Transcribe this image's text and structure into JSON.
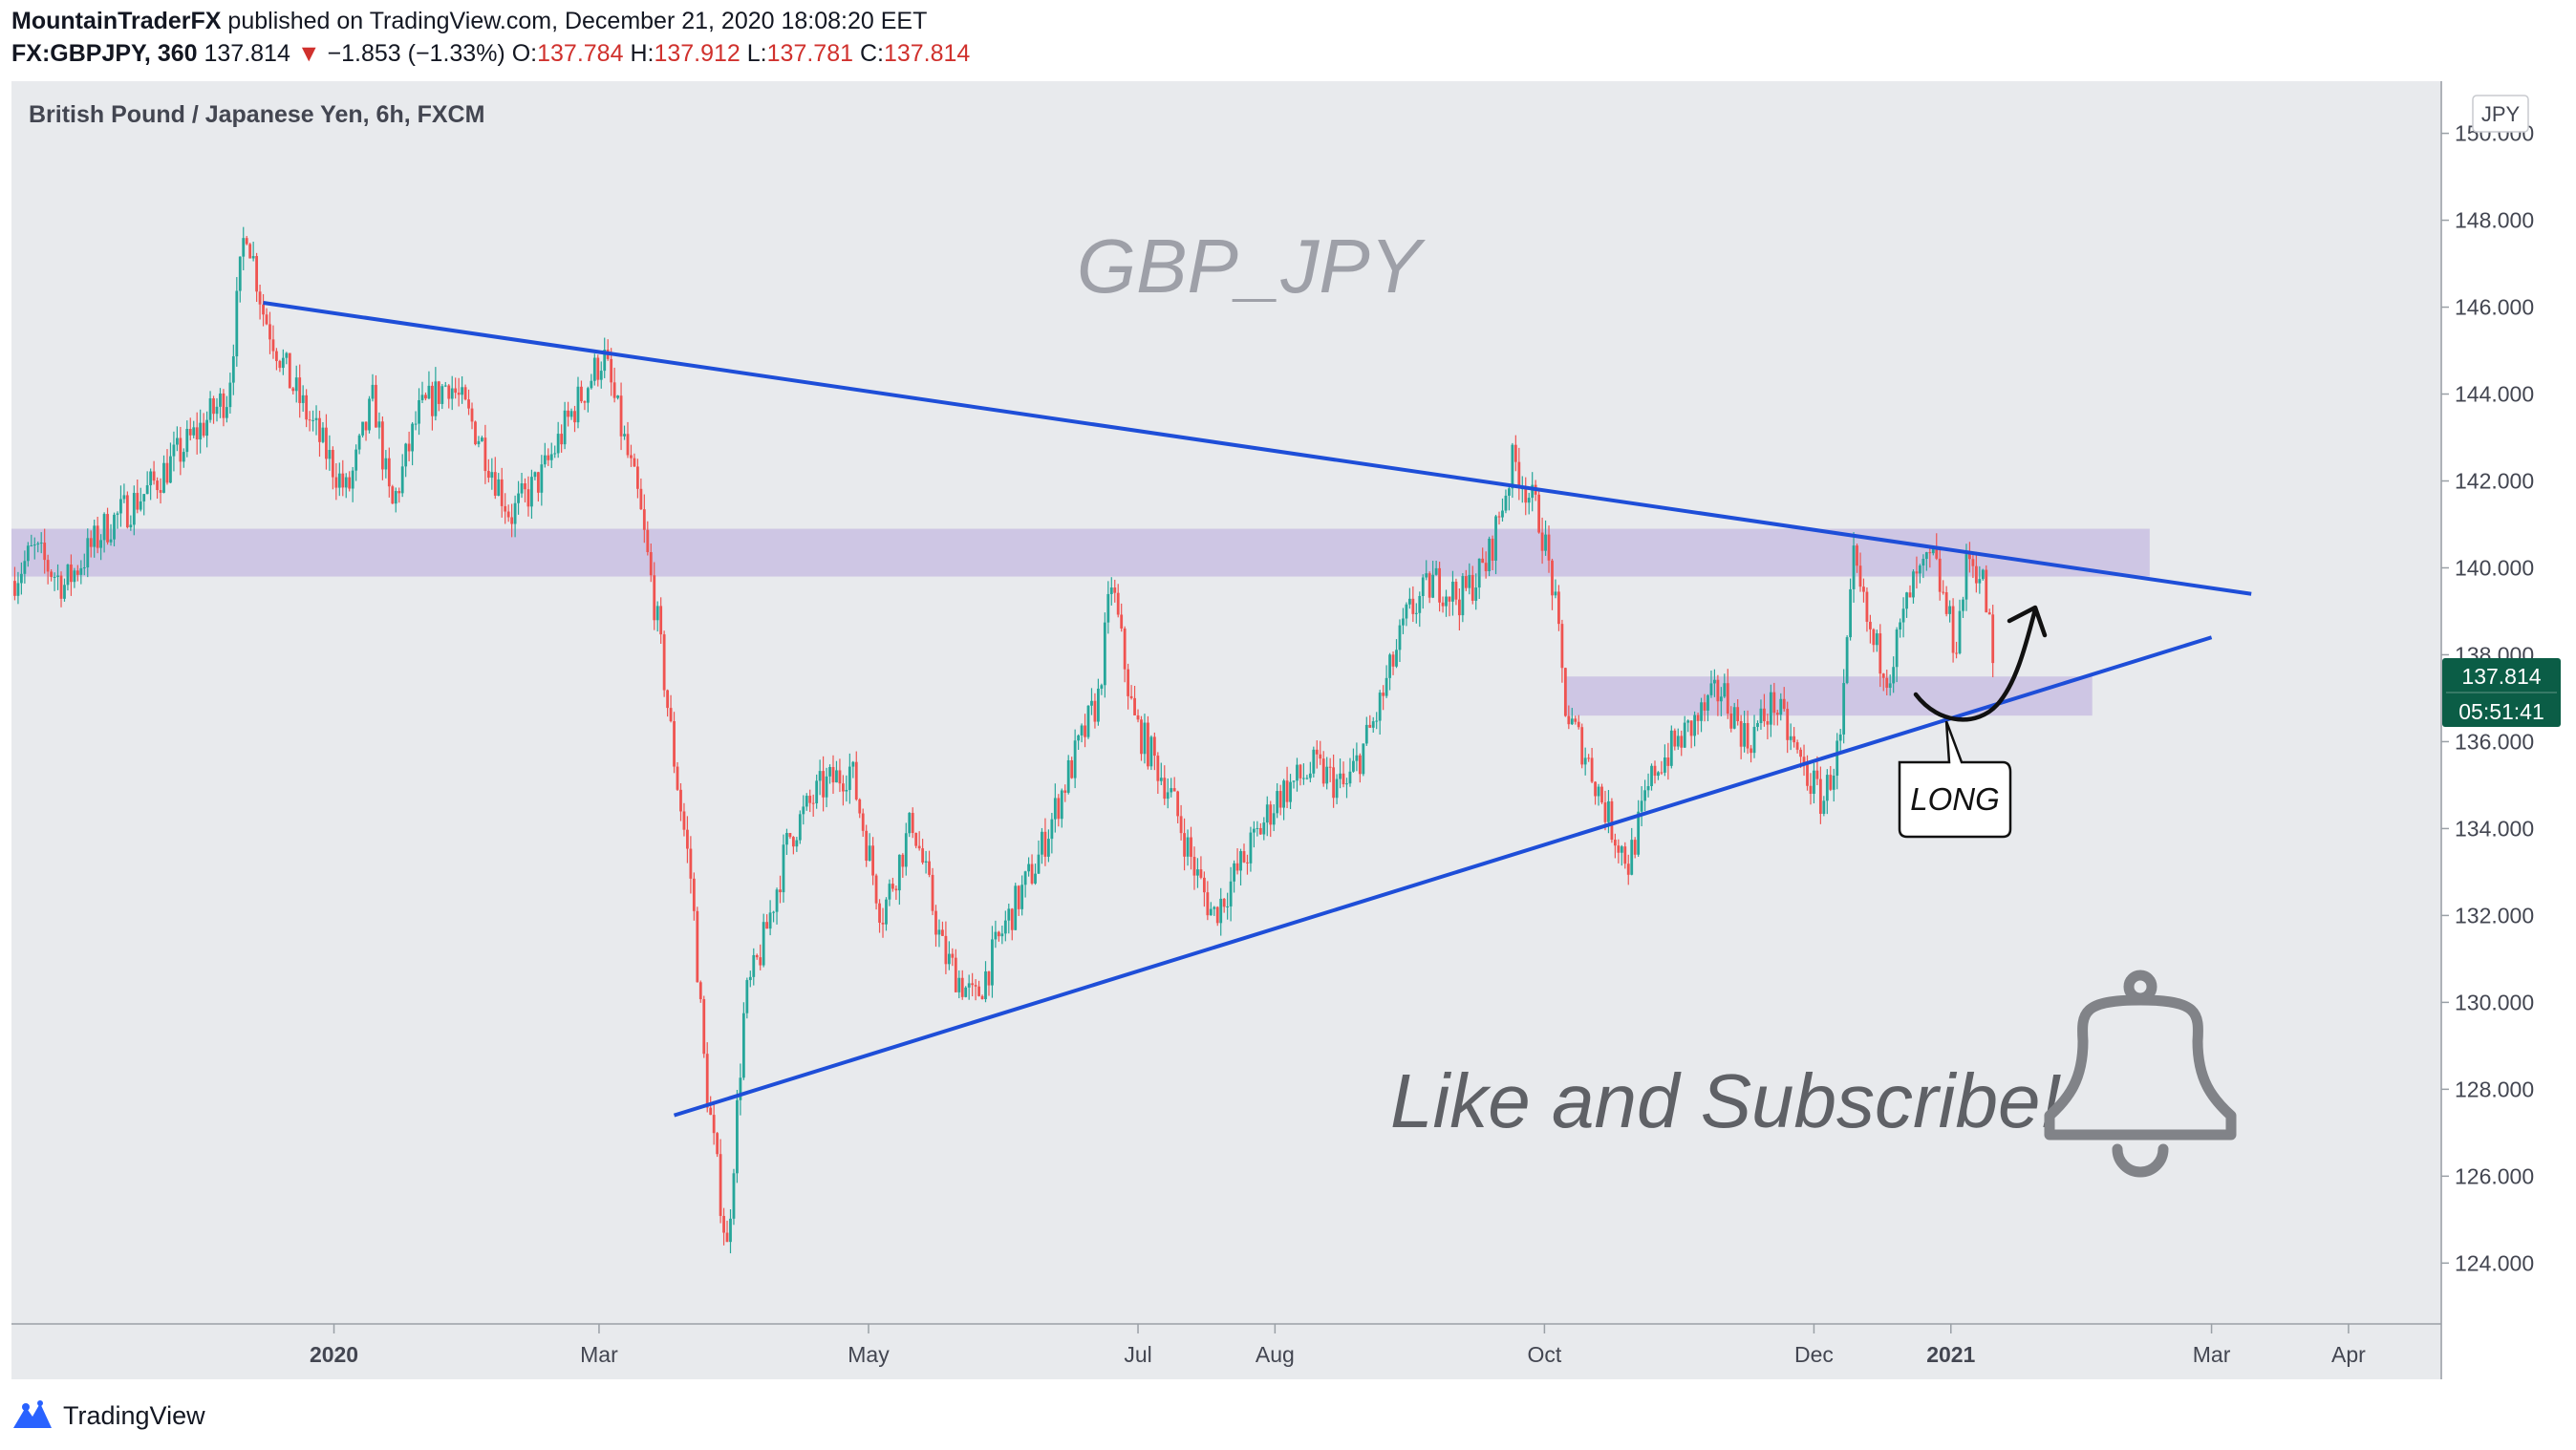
{
  "header": {
    "author": "MountainTraderFX",
    "published_text": "published on TradingView.com, December 21, 2020 18:08:20 EET",
    "symbol": "FX:GBPJPY, 360",
    "last": "137.814",
    "change_arrow": "▼",
    "change": "−1.853 (−1.33%)",
    "o_label": "O:",
    "o_value": "137.784",
    "h_label": "H:",
    "h_value": "137.912",
    "l_label": "L:",
    "l_value": "137.781",
    "c_label": "C:",
    "c_value": "137.814"
  },
  "footer": {
    "brand": "TradingView",
    "logo_icon": "tradingview-logo-icon"
  },
  "colors": {
    "background": "#e8eaed",
    "up": "#26a69a",
    "down": "#ef5350",
    "trendline": "#1e4ed8",
    "zone": "#c9c0e2",
    "price_badge": "#0b5d46"
  },
  "chart_data": {
    "type": "candlestick",
    "title": "British Pound / Japanese Yen, 6h, FXCM",
    "currency": "JPY",
    "watermark": "GBP_JPY",
    "annotation_text": "Like and Subscribe!",
    "callout": "LONG",
    "last_price": "137.814",
    "countdown": "05:51:41",
    "ylim": [
      122.6,
      151.2
    ],
    "y_ticks": [
      "150.000",
      "148.000",
      "146.000",
      "144.000",
      "142.000",
      "140.000",
      "138.000",
      "136.000",
      "134.000",
      "132.000",
      "130.000",
      "128.000",
      "126.000",
      "124.000"
    ],
    "x_ticks": [
      "2020",
      "Mar",
      "May",
      "Jul",
      "Aug",
      "Oct",
      "Dec",
      "2021",
      "Mar",
      "Apr"
    ],
    "x_tick_dates": [
      "2020-01-01",
      "2020-03-01",
      "2020-05-01",
      "2020-07-01",
      "2020-08-01",
      "2020-10-01",
      "2020-12-01",
      "2021-01-01",
      "2021-03-01",
      "2021-04-01"
    ],
    "xlim": [
      "2019-10-20",
      "2021-04-22"
    ],
    "price_path": [
      [
        "2019-10-20",
        139.7
      ],
      [
        "2019-10-25",
        140.4
      ],
      [
        "2019-11-01",
        139.6
      ],
      [
        "2019-11-10",
        140.9
      ],
      [
        "2019-11-20",
        141.8
      ],
      [
        "2019-11-30",
        143.0
      ],
      [
        "2019-12-08",
        144.0
      ],
      [
        "2019-12-12",
        148.0
      ],
      [
        "2019-12-16",
        145.9
      ],
      [
        "2019-12-22",
        144.3
      ],
      [
        "2019-12-28",
        143.1
      ],
      [
        "2020-01-04",
        141.7
      ],
      [
        "2020-01-10",
        143.9
      ],
      [
        "2020-01-14",
        141.3
      ],
      [
        "2020-01-20",
        143.5
      ],
      [
        "2020-01-27",
        144.3
      ],
      [
        "2020-02-03",
        143.0
      ],
      [
        "2020-02-10",
        141.2
      ],
      [
        "2020-02-17",
        142.1
      ],
      [
        "2020-02-24",
        143.6
      ],
      [
        "2020-03-02",
        144.9
      ],
      [
        "2020-03-06",
        143.2
      ],
      [
        "2020-03-10",
        141.5
      ],
      [
        "2020-03-14",
        138.9
      ],
      [
        "2020-03-18",
        135.6
      ],
      [
        "2020-03-22",
        132.7
      ],
      [
        "2020-03-25",
        128.3
      ],
      [
        "2020-03-30",
        124.3
      ],
      [
        "2020-04-03",
        130.0
      ],
      [
        "2020-04-07",
        131.3
      ],
      [
        "2020-04-13",
        133.8
      ],
      [
        "2020-04-20",
        134.9
      ],
      [
        "2020-04-27",
        135.4
      ],
      [
        "2020-05-04",
        132.0
      ],
      [
        "2020-05-11",
        134.2
      ],
      [
        "2020-05-18",
        131.1
      ],
      [
        "2020-05-25",
        130.0
      ],
      [
        "2020-06-01",
        131.8
      ],
      [
        "2020-06-08",
        133.2
      ],
      [
        "2020-06-15",
        135.2
      ],
      [
        "2020-06-22",
        137.0
      ],
      [
        "2020-06-25",
        139.7
      ],
      [
        "2020-06-30",
        136.5
      ],
      [
        "2020-07-08",
        134.9
      ],
      [
        "2020-07-14",
        133.0
      ],
      [
        "2020-07-18",
        132.0
      ],
      [
        "2020-07-25",
        133.3
      ],
      [
        "2020-08-02",
        134.8
      ],
      [
        "2020-08-10",
        135.4
      ],
      [
        "2020-08-17",
        134.9
      ],
      [
        "2020-08-24",
        136.6
      ],
      [
        "2020-08-31",
        138.9
      ],
      [
        "2020-09-06",
        139.7
      ],
      [
        "2020-09-12",
        139.3
      ],
      [
        "2020-09-18",
        140.1
      ],
      [
        "2020-09-24",
        142.5
      ],
      [
        "2020-09-30",
        141.1
      ],
      [
        "2020-10-03",
        139.5
      ],
      [
        "2020-10-06",
        136.6
      ],
      [
        "2020-10-10",
        135.8
      ],
      [
        "2020-10-16",
        134.1
      ],
      [
        "2020-10-20",
        133.2
      ],
      [
        "2020-10-26",
        135.4
      ],
      [
        "2020-11-03",
        136.3
      ],
      [
        "2020-11-10",
        137.2
      ],
      [
        "2020-11-16",
        136.0
      ],
      [
        "2020-11-22",
        136.9
      ],
      [
        "2020-11-28",
        135.5
      ],
      [
        "2020-12-03",
        134.6
      ],
      [
        "2020-12-07",
        136.0
      ],
      [
        "2020-12-10",
        140.1
      ],
      [
        "2020-12-14",
        138.3
      ],
      [
        "2020-12-18",
        137.6
      ],
      [
        "2020-12-23",
        139.5
      ],
      [
        "2020-12-28",
        140.2
      ],
      [
        "2021-01-02",
        138.2
      ],
      [
        "2021-01-05",
        140.3
      ],
      [
        "2021-01-08",
        139.8
      ],
      [
        "2021-01-11",
        137.81
      ]
    ],
    "trendlines": [
      {
        "name": "resistance",
        "points": [
          [
            "2019-12-16",
            146.1
          ],
          [
            "2021-03-10",
            139.4
          ]
        ]
      },
      {
        "name": "support",
        "points": [
          [
            "2020-03-18",
            127.4
          ],
          [
            "2021-03-01",
            138.4
          ]
        ]
      }
    ],
    "zones": [
      {
        "from": "2019-10-20",
        "to": "2021-02-15",
        "y_low": 139.8,
        "y_high": 140.9
      },
      {
        "from": "2020-10-06",
        "to": "2021-02-02",
        "y_low": 136.6,
        "y_high": 137.5
      }
    ]
  }
}
